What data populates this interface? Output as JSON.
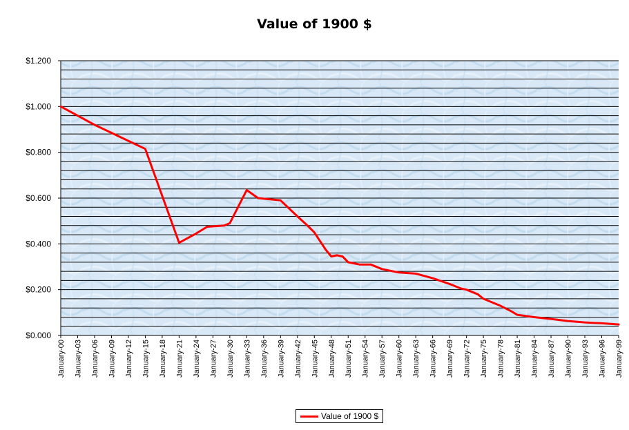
{
  "chart_data": {
    "type": "line",
    "title": "Value of 1900 $",
    "xlabel": "",
    "ylabel": "",
    "ylim": [
      0,
      1.2
    ],
    "y_tick_values": [
      0,
      0.2,
      0.4,
      0.6,
      0.8,
      1.0,
      1.2
    ],
    "y_tick_labels": [
      "$0.000",
      "$0.200",
      "$0.400",
      "$0.600",
      "$0.800",
      "$1.000",
      "$1.200"
    ],
    "grid": true,
    "legend_position": "bottom-center",
    "x_range": [
      1900,
      1999
    ],
    "x_tick_labels": [
      "January-00",
      "January-03",
      "January-06",
      "January-09",
      "January-12",
      "January-15",
      "January-18",
      "January-21",
      "January-24",
      "January-27",
      "January-30",
      "January-33",
      "January-36",
      "January-39",
      "January-42",
      "January-45",
      "January-48",
      "January-51",
      "January-54",
      "January-57",
      "January-60",
      "January-63",
      "January-66",
      "January-69",
      "January-72",
      "January-75",
      "January-78",
      "January-81",
      "January-84",
      "January-87",
      "January-90",
      "January-93",
      "January-96",
      "January-99"
    ],
    "series": [
      {
        "name": "Value of 1900 $",
        "color": "#ff0000",
        "x": [
          1900,
          1903,
          1906,
          1909,
          1912,
          1915,
          1918,
          1921,
          1924,
          1926,
          1929,
          1930,
          1933,
          1935,
          1939,
          1942,
          1944,
          1945,
          1947,
          1948,
          1949,
          1950,
          1951,
          1953,
          1955,
          1957,
          1960,
          1963,
          1966,
          1969,
          1971,
          1972,
          1974,
          1975,
          1978,
          1980,
          1981,
          1984,
          1987,
          1990,
          1993,
          1996,
          1999
        ],
        "values": [
          1.0,
          0.96,
          0.92,
          0.885,
          0.85,
          0.815,
          0.61,
          0.405,
          0.445,
          0.475,
          0.48,
          0.49,
          0.635,
          0.6,
          0.59,
          0.52,
          0.475,
          0.45,
          0.375,
          0.345,
          0.35,
          0.345,
          0.32,
          0.31,
          0.31,
          0.29,
          0.275,
          0.27,
          0.25,
          0.225,
          0.205,
          0.2,
          0.18,
          0.16,
          0.13,
          0.105,
          0.09,
          0.08,
          0.072,
          0.063,
          0.057,
          0.053,
          0.048
        ]
      }
    ]
  },
  "colors": {
    "plot_background": "#d8e8f6",
    "gridline": "#000000",
    "series_line": "#ff0000"
  }
}
